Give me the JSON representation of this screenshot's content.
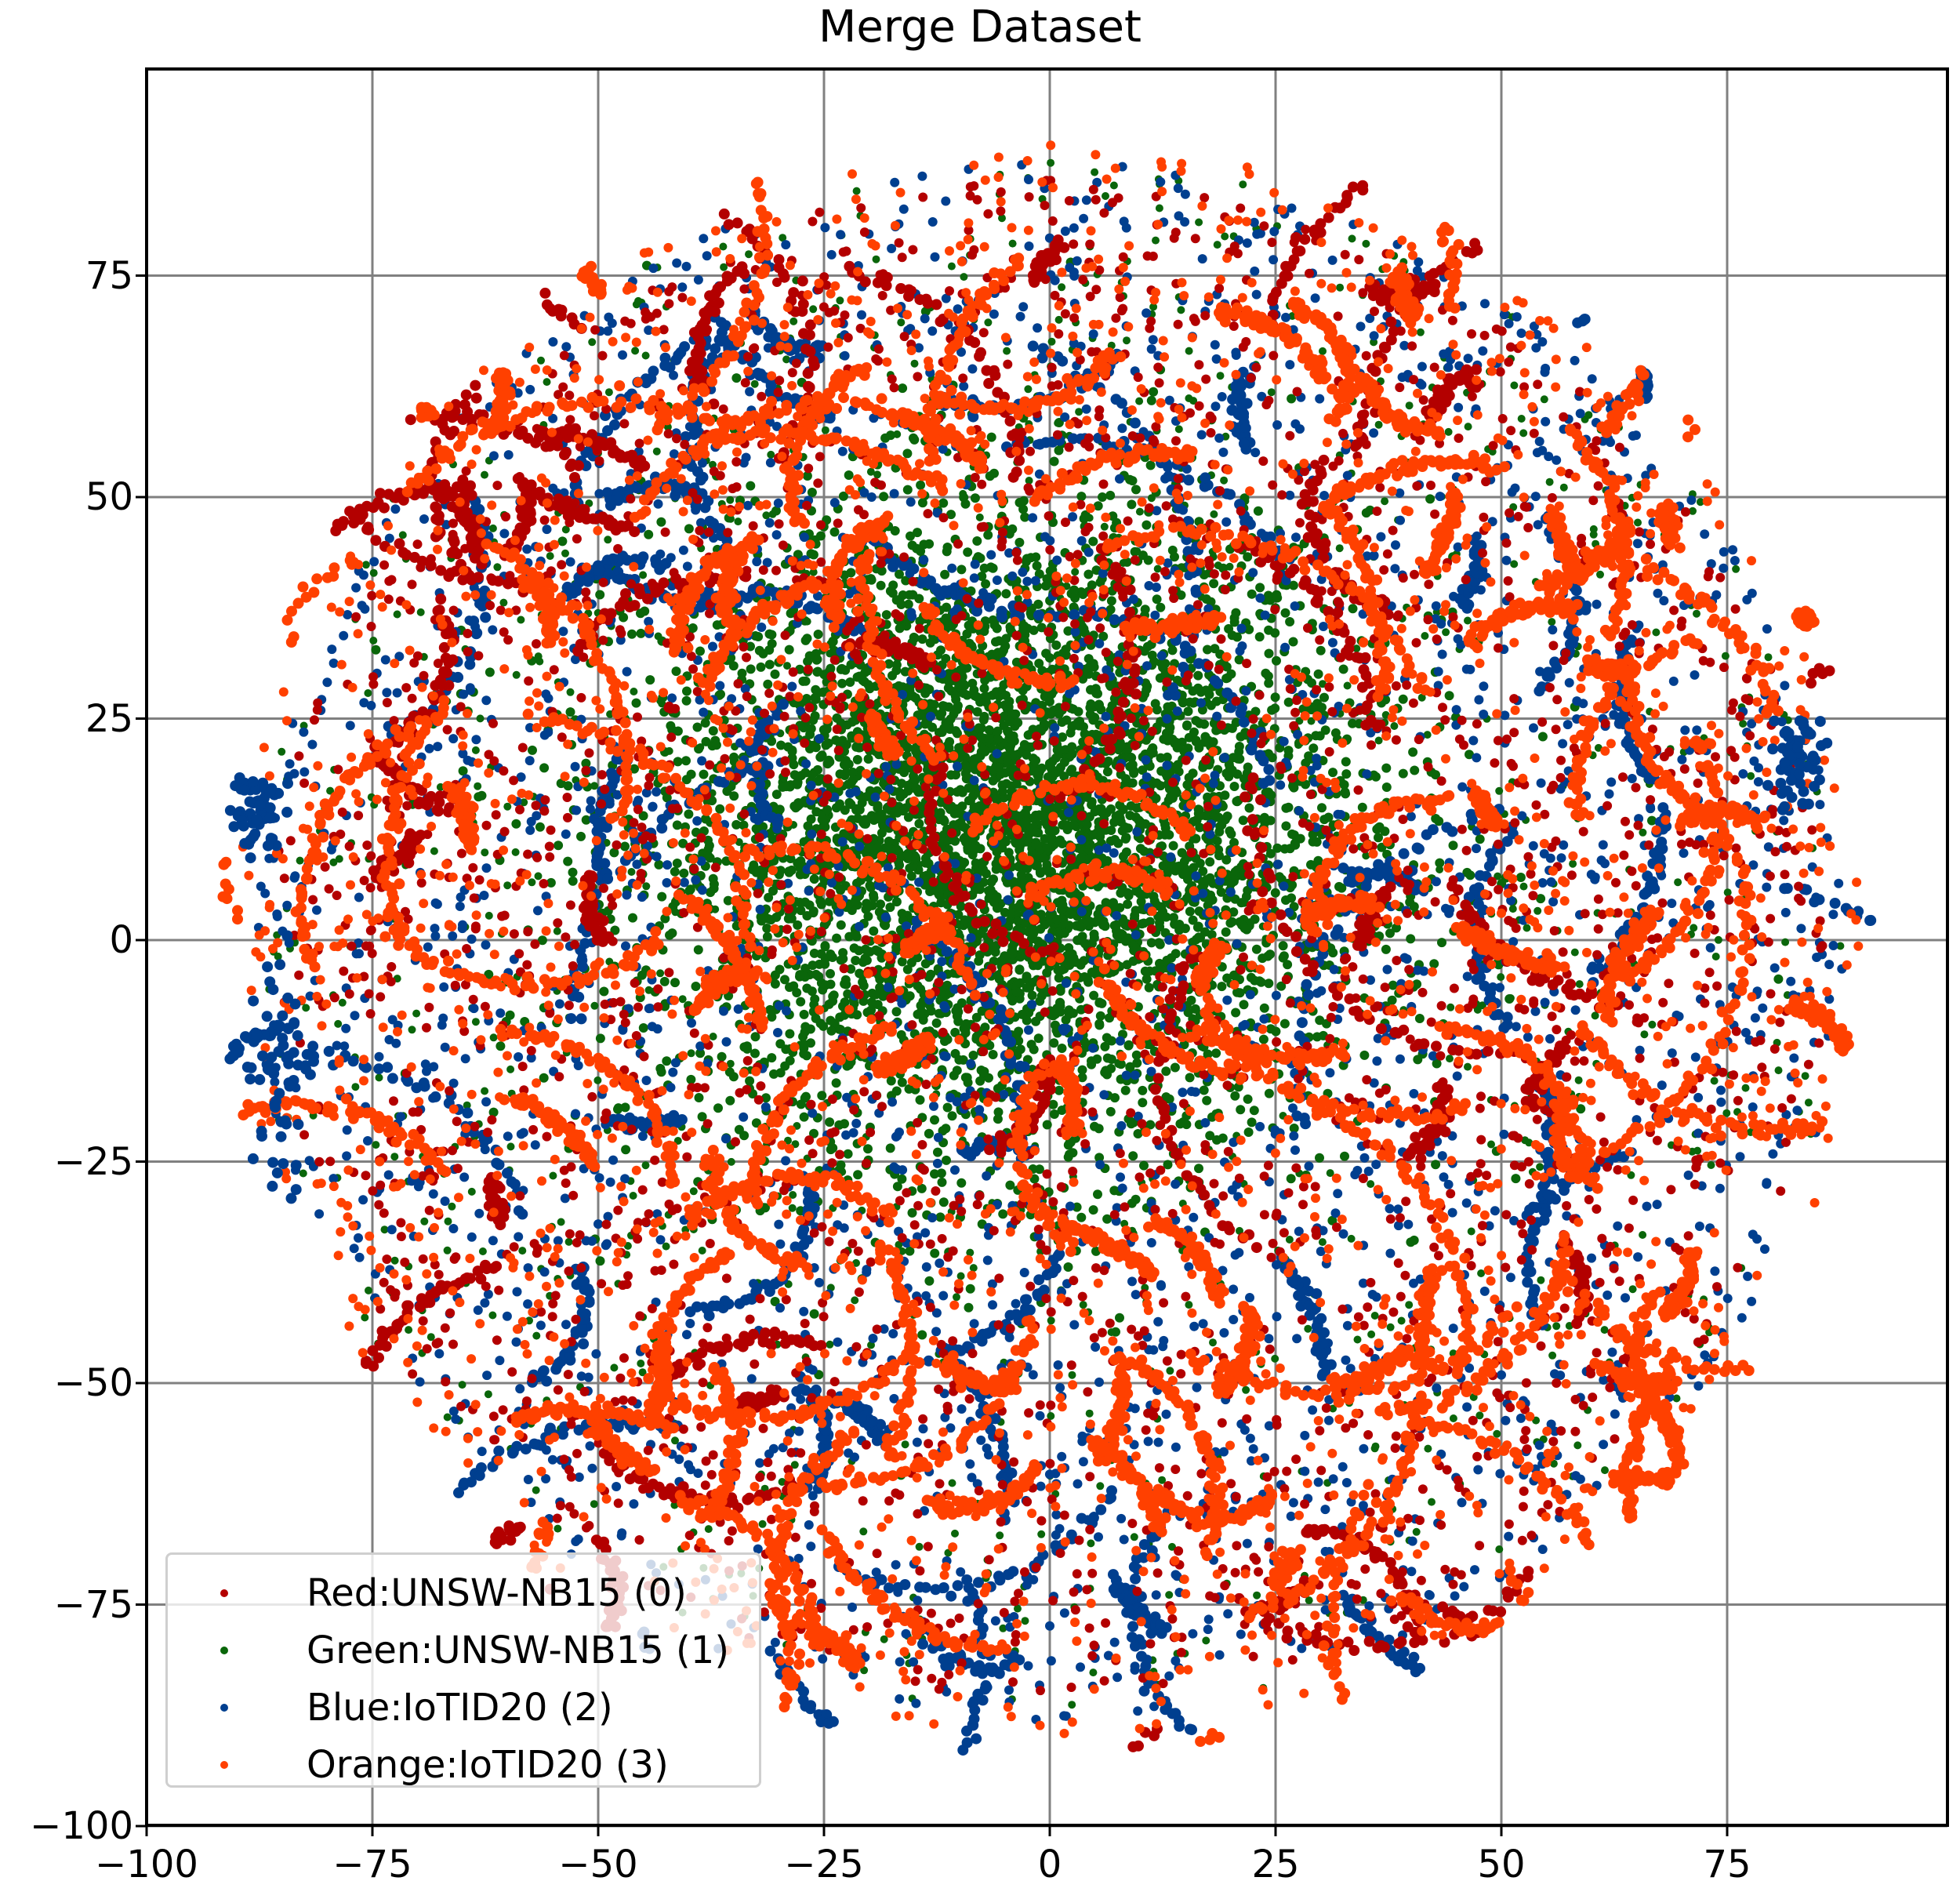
{
  "chart_data": {
    "type": "scatter",
    "title": "Merge Dataset",
    "xlabel": "",
    "ylabel": "",
    "xlim": [
      -100,
      98
    ],
    "ylim": [
      -100,
      98
    ],
    "grid": true,
    "legend_position": "lower left",
    "x_ticks": [
      -100,
      -75,
      -50,
      -25,
      0,
      25,
      50,
      75
    ],
    "y_ticks": [
      -100,
      -75,
      -50,
      -25,
      0,
      25,
      50,
      75
    ],
    "x_tick_labels": [
      "−100",
      "−75",
      "−50",
      "−25",
      "0",
      "25",
      "50",
      "75"
    ],
    "y_tick_labels": [
      "−100",
      "−75",
      "−50",
      "−25",
      "0",
      "25",
      "50",
      "75"
    ],
    "description": "t-SNE style 2D embedding; points form a roughly circular cloud of radius ~90 centered at origin; green concentrated in center, red/orange/blue spread throughout with curved strands",
    "series": [
      {
        "name": "Red:UNSW-NB15 (0)",
        "color": "#b30000",
        "class": 0,
        "distribution": {
          "center": [
            0,
            0
          ],
          "radius": 85,
          "density": "moderate, many clusters near (-60,15), (30,35), (15,-65)"
        }
      },
      {
        "name": "Green:UNSW-NB15 (1)",
        "color": "#0a660a",
        "class": 1,
        "distribution": {
          "center": [
            -5,
            10
          ],
          "radius": 45,
          "density": "dense in center region x:-40..30, y:-20..45"
        }
      },
      {
        "name": "Blue:IoTID20 (2)",
        "color": "#003f8f",
        "class": 2,
        "distribution": {
          "center": [
            10,
            -10
          ],
          "radius": 90,
          "density": "spread, outer arcs at (-88,15), (-85,-15), (83,20)"
        }
      },
      {
        "name": "Orange:IoTID20 (3)",
        "color": "#ff4000",
        "class": 3,
        "distribution": {
          "center": [
            0,
            0
          ],
          "radius": 90,
          "density": "dense curved strands throughout, heavy in lower half and left side"
        }
      }
    ]
  },
  "legend": {
    "items": [
      {
        "label": "Red:UNSW-NB15 (0)",
        "color": "#b30000"
      },
      {
        "label": "Green:UNSW-NB15 (1)",
        "color": "#0a660a"
      },
      {
        "label": "Blue:IoTID20 (2)",
        "color": "#003f8f"
      },
      {
        "label": "Orange:IoTID20 (3)",
        "color": "#ff4000"
      }
    ]
  }
}
